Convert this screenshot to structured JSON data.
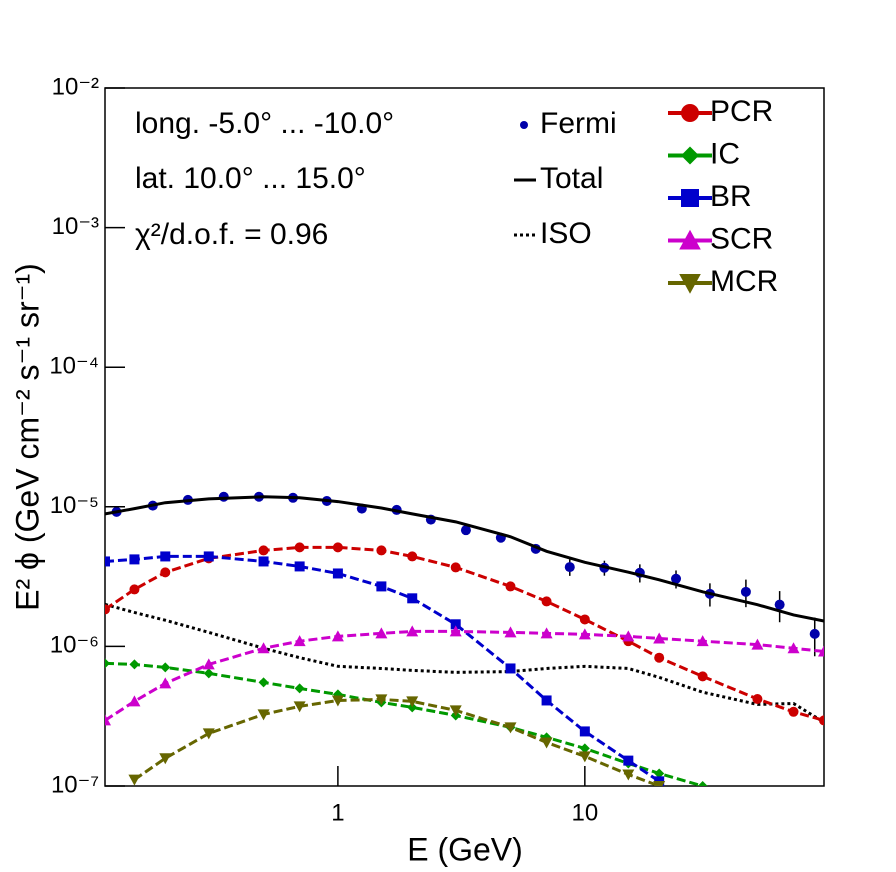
{
  "chart_data": {
    "type": "line",
    "xlog": true,
    "ylog": true,
    "xlim": [
      0.114,
      93
    ],
    "ylim": [
      1e-07,
      0.01
    ],
    "xticks": [
      1,
      10
    ],
    "yticks": [
      {
        "value": 1e-07,
        "label": "10⁻⁷"
      },
      {
        "value": 1e-06,
        "label": "10⁻⁶"
      },
      {
        "value": 1e-05,
        "label": "10⁻⁵"
      },
      {
        "value": 0.0001,
        "label": "10⁻⁴"
      },
      {
        "value": 0.001,
        "label": "10⁻³"
      },
      {
        "value": 0.01,
        "label": "10⁻²"
      }
    ],
    "x_label": "E (GeV)",
    "y_label": "E² ϕ (GeV cm⁻² s⁻¹ sr⁻¹)",
    "annotations": [
      "long. -5.0° ... -10.0°",
      "lat. 10.0° ... 15.0°",
      "χ²/d.o.f. = 0.96"
    ],
    "x": [
      0.114,
      0.15,
      0.2,
      0.3,
      0.5,
      0.7,
      1,
      1.5,
      2,
      3,
      5,
      7,
      10,
      15,
      20,
      30,
      50,
      70,
      93
    ],
    "series": [
      {
        "name": "Fermi",
        "type": "scatter",
        "color": "#0000aa",
        "marker": "circle",
        "x": [
          0.127,
          0.178,
          0.247,
          0.345,
          0.479,
          0.658,
          0.902,
          1.25,
          1.73,
          2.38,
          3.3,
          4.57,
          6.33,
          8.69,
          12.0,
          16.7,
          23.4,
          32.1,
          44.9,
          61.5,
          85.3
        ],
        "values": [
          9.2e-06,
          1.02e-05,
          1.12e-05,
          1.18e-05,
          1.18e-05,
          1.16e-05,
          1.1e-05,
          9.7e-06,
          9.5e-06,
          8.1e-06,
          6.8e-06,
          6e-06,
          5e-06,
          3.7e-06,
          3.66e-06,
          3.37e-06,
          3.05e-06,
          2.38e-06,
          2.46e-06,
          1.99e-06,
          1.23e-06
        ],
        "errors": [
          2e-07,
          2e-07,
          2e-07,
          2e-07,
          2e-07,
          2e-07,
          2e-07,
          2e-07,
          2e-07,
          2e-07,
          2e-07,
          2e-07,
          2.5e-07,
          5e-07,
          4.5e-07,
          5e-07,
          4.5e-07,
          4.5e-07,
          5.5e-07,
          5e-07,
          3.8e-07
        ]
      },
      {
        "name": "Total",
        "color": "#000000",
        "dash": "solid",
        "values": [
          8.9e-06,
          9.7e-06,
          1.07e-05,
          1.14e-05,
          1.18e-05,
          1.16e-05,
          1.09e-05,
          9.8e-06,
          8.9e-06,
          7.8e-06,
          6.1e-06,
          4.8e-06,
          4e-06,
          3.4e-06,
          3e-06,
          2.46e-06,
          1.99e-06,
          1.68e-06,
          1.52e-06
        ]
      },
      {
        "name": "ISO",
        "color": "#000000",
        "dash": "dotted",
        "values": [
          2e-06,
          1.75e-06,
          1.54e-06,
          1.26e-06,
          9.7e-07,
          8.3e-07,
          7.2e-07,
          6.95e-07,
          6.73e-07,
          6.52e-07,
          6.6e-07,
          6.95e-07,
          7.2e-07,
          6.95e-07,
          6e-07,
          4.7e-07,
          3.84e-07,
          3.9e-07,
          2.86e-07
        ]
      },
      {
        "name": "PCR",
        "color": "#cc0000",
        "dash": "dashed",
        "marker": "circle",
        "values": [
          1.84e-06,
          2.56e-06,
          3.39e-06,
          4.27e-06,
          4.87e-06,
          5.12e-06,
          5.12e-06,
          4.87e-06,
          4.41e-06,
          3.68e-06,
          2.69e-06,
          2.1e-06,
          1.56e-06,
          1.09e-06,
          8.3e-07,
          6.1e-07,
          4.2e-07,
          3.4e-07,
          2.95e-07
        ]
      },
      {
        "name": "IC",
        "color": "#009900",
        "dash": "dashed",
        "marker": "diamond",
        "values": [
          7.56e-07,
          7.43e-07,
          7.07e-07,
          6.41e-07,
          5.52e-07,
          5e-07,
          4.53e-07,
          3.97e-07,
          3.66e-07,
          3.2e-07,
          2.63e-07,
          2.23e-07,
          1.86e-07,
          1.45e-07,
          1.23e-07,
          1e-07,
          null,
          null,
          null
        ]
      },
      {
        "name": "BR",
        "color": "#0000cc",
        "dash": "dashed",
        "marker": "square",
        "values": [
          4.06e-06,
          4.2e-06,
          4.41e-06,
          4.41e-06,
          4.06e-06,
          3.74e-06,
          3.33e-06,
          2.69e-06,
          2.21e-06,
          1.44e-06,
          6.95e-07,
          4.1e-07,
          2.46e-07,
          1.52e-07,
          1.08e-07,
          null,
          null,
          null,
          null
        ]
      },
      {
        "name": "SCR",
        "color": "#cc00cc",
        "dash": "dashed",
        "marker": "triangle-up",
        "values": [
          2.95e-07,
          4.04e-07,
          5.43e-07,
          7.43e-07,
          9.7e-07,
          1.09e-06,
          1.18e-06,
          1.24e-06,
          1.28e-06,
          1.28e-06,
          1.26e-06,
          1.24e-06,
          1.22e-06,
          1.18e-06,
          1.14e-06,
          1.09e-06,
          1.03e-06,
          9.7e-07,
          9.2e-07
        ]
      },
      {
        "name": "MCR",
        "color": "#666600",
        "dash": "dashed",
        "marker": "triangle-down",
        "values": [
          null,
          1.11e-07,
          1.58e-07,
          2.38e-07,
          3.26e-07,
          3.72e-07,
          4.1e-07,
          4.17e-07,
          4.04e-07,
          3.48e-07,
          2.63e-07,
          2.05e-07,
          1.63e-07,
          1.21e-07,
          1e-07,
          null,
          null,
          null,
          null
        ]
      }
    ]
  }
}
